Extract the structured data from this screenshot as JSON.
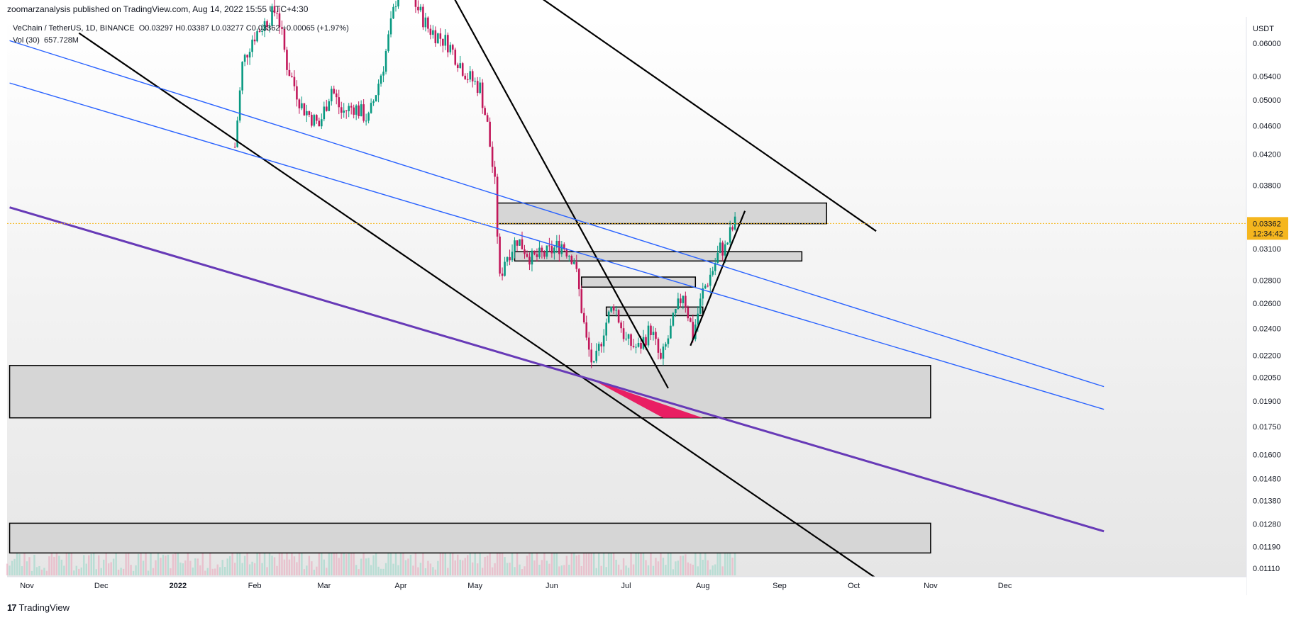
{
  "header": {
    "published": "zoomarzanalysis published on TradingView.com, Aug 14, 2022 15:55 UTC+4:30"
  },
  "legend": {
    "symbol": "VeChain / TetherUS, 1D, BINANCE",
    "ohlc": "O0.03297 H0.03387 L0.03277 C0.03362 +0.00065 (+1.97%)",
    "volume": "Vol (30)",
    "volume_value": "657.728M"
  },
  "price_axis": {
    "currency": "USDT",
    "current_price": "0.03362",
    "countdown": "12:34:42"
  },
  "footer": {
    "brand": "TradingView"
  },
  "colors": {
    "up": "#089981",
    "down": "#c2185b",
    "blue_channel": "#2962ff",
    "purple_trend": "#673ab7",
    "highlight": "#e91e63",
    "price_tag": "#f5b61e"
  },
  "chart_data": {
    "type": "candlestick",
    "symbol": "VeChain / TetherUS",
    "interval": "1D",
    "exchange": "BINANCE",
    "scale": "log",
    "y_ticks": [
      "0.06000",
      "0.05400",
      "0.05000",
      "0.04600",
      "0.04200",
      "0.03800",
      "0.03100",
      "0.02800",
      "0.02600",
      "0.02400",
      "0.02200",
      "0.02050",
      "0.01900",
      "0.01750",
      "0.01600",
      "0.01480",
      "0.01380",
      "0.01280",
      "0.01190",
      "0.01110"
    ],
    "x_ticks": [
      "Nov",
      "Dec",
      "2022",
      "Feb",
      "Mar",
      "Apr",
      "May",
      "Jun",
      "Jul",
      "Aug",
      "Sep",
      "Oct",
      "Nov",
      "Dec"
    ],
    "x_tick_dates": [
      "2021-11-01",
      "2021-12-01",
      "2022-01-01",
      "2022-02-01",
      "2022-03-01",
      "2022-04-01",
      "2022-05-01",
      "2022-06-01",
      "2022-07-01",
      "2022-08-01",
      "2022-09-01",
      "2022-10-01",
      "2022-11-01",
      "2022-12-01"
    ],
    "last_close": 0.03362,
    "price_path": [
      [
        "2022-01-24",
        0.043
      ],
      [
        "2022-01-27",
        0.056
      ],
      [
        "2022-01-31",
        0.061
      ],
      [
        "2022-02-05",
        0.064
      ],
      [
        "2022-02-10",
        0.067
      ],
      [
        "2022-02-14",
        0.056
      ],
      [
        "2022-02-20",
        0.049
      ],
      [
        "2022-02-27",
        0.046
      ],
      [
        "2022-03-04",
        0.052
      ],
      [
        "2022-03-08",
        0.048
      ],
      [
        "2022-03-13",
        0.049
      ],
      [
        "2022-03-19",
        0.047
      ],
      [
        "2022-03-25",
        0.056
      ],
      [
        "2022-03-31",
        0.072
      ],
      [
        "2022-04-05",
        0.07
      ],
      [
        "2022-04-12",
        0.063
      ],
      [
        "2022-04-20",
        0.06
      ],
      [
        "2022-04-28",
        0.054
      ],
      [
        "2022-05-03",
        0.052
      ],
      [
        "2022-05-06",
        0.046
      ],
      [
        "2022-05-09",
        0.038
      ],
      [
        "2022-05-11",
        0.028
      ],
      [
        "2022-05-13",
        0.03
      ],
      [
        "2022-05-18",
        0.032
      ],
      [
        "2022-05-24",
        0.03
      ],
      [
        "2022-05-30",
        0.0305
      ],
      [
        "2022-06-05",
        0.0315
      ],
      [
        "2022-06-10",
        0.03
      ],
      [
        "2022-06-12",
        0.027
      ],
      [
        "2022-06-15",
        0.023
      ],
      [
        "2022-06-18",
        0.021
      ],
      [
        "2022-06-22",
        0.024
      ],
      [
        "2022-06-26",
        0.026
      ],
      [
        "2022-07-01",
        0.023
      ],
      [
        "2022-07-06",
        0.0225
      ],
      [
        "2022-07-11",
        0.024
      ],
      [
        "2022-07-15",
        0.0215
      ],
      [
        "2022-07-20",
        0.0245
      ],
      [
        "2022-07-24",
        0.027
      ],
      [
        "2022-07-28",
        0.0235
      ],
      [
        "2022-08-01",
        0.027
      ],
      [
        "2022-08-05",
        0.029
      ],
      [
        "2022-08-08",
        0.031
      ],
      [
        "2022-08-10",
        0.031
      ],
      [
        "2022-08-12",
        0.0325
      ],
      [
        "2022-08-14",
        0.0336
      ]
    ],
    "zones": [
      {
        "from": "2022-05-10",
        "to": "2022-09-20",
        "low": 0.0336,
        "high": 0.0359
      },
      {
        "from": "2022-05-17",
        "to": "2022-09-10",
        "low": 0.0298,
        "high": 0.0307
      },
      {
        "from": "2022-06-13",
        "to": "2022-07-29",
        "low": 0.0274,
        "high": 0.0283
      },
      {
        "from": "2022-06-23",
        "to": "2022-08-01",
        "low": 0.025,
        "high": 0.0257
      },
      {
        "from": "2021-10-25",
        "to": "2022-11-01",
        "low": 0.018,
        "high": 0.0213
      },
      {
        "from": "2021-10-25",
        "to": "2022-11-01",
        "low": 0.01166,
        "high": 0.01283
      }
    ]
  }
}
